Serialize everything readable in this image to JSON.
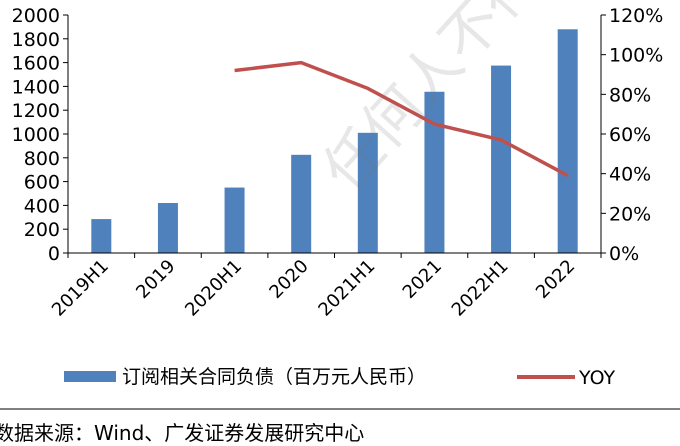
{
  "chart_data": {
    "type": "bar",
    "categories": [
      "2019H1",
      "2019",
      "2020H1",
      "2020",
      "2021H1",
      "2021",
      "2022H1",
      "2022"
    ],
    "series": [
      {
        "name": "订阅相关合同负债（百万元人民币）",
        "type": "bar",
        "axis": "left",
        "color": "#4f81bd",
        "values": [
          285,
          420,
          550,
          825,
          1010,
          1355,
          1575,
          1880
        ]
      },
      {
        "name": "YOY",
        "type": "line",
        "axis": "right",
        "color": "#c0504d",
        "values": [
          null,
          null,
          0.92,
          0.96,
          0.83,
          0.65,
          0.57,
          0.39
        ]
      }
    ],
    "y_left": {
      "lim": [
        0,
        2000
      ],
      "ticks": [
        0,
        200,
        400,
        600,
        800,
        1000,
        1200,
        1400,
        1600,
        1800,
        2000
      ],
      "tick_labels": [
        "0",
        "200",
        "400",
        "600",
        "800",
        "1000",
        "1200",
        "1400",
        "1600",
        "1800",
        "2000"
      ]
    },
    "y_right": {
      "lim": [
        0,
        1.2
      ],
      "ticks": [
        0,
        0.2,
        0.4,
        0.6,
        0.8,
        1.0,
        1.2
      ],
      "tick_labels": [
        "0%",
        "20%",
        "40%",
        "60%",
        "80%",
        "100%",
        "120%"
      ]
    },
    "grid": false,
    "legend": "bottom"
  },
  "source": "数据来源：Wind、广发证券发展研究中心",
  "watermark": "任何人不得以任何形式"
}
